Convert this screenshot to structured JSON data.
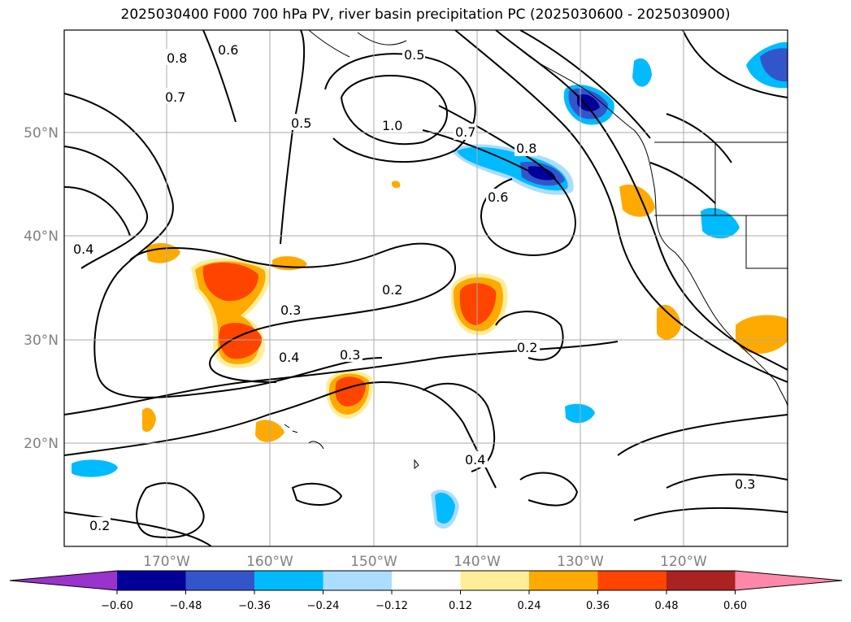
{
  "title": "2025030400 F000 700 hPa PV, river basin precipitation PC (2025030600 - 2025030900)",
  "map": {
    "lat_labels": [
      "50°N",
      "40°N",
      "30°N",
      "20°N"
    ],
    "lon_labels": [
      "170°W",
      "160°W",
      "150°W",
      "140°W",
      "130°W",
      "120°W"
    ],
    "grid": true
  },
  "contour_labels": [
    "0.8",
    "0.7",
    "0.6",
    "0.5",
    "0.4",
    "0.3",
    "0.2",
    "1.0",
    "0.2",
    "0.3",
    "0.4",
    "0.5",
    "0.6",
    "0.7",
    "0.8",
    "0.4",
    "0.3",
    "0.2"
  ],
  "precip_blobs": [
    {
      "sign": "positive",
      "peak": 0.48
    },
    {
      "sign": "positive",
      "peak": 0.48
    },
    {
      "sign": "positive",
      "peak": 0.48
    },
    {
      "sign": "positive",
      "peak": 0.48
    },
    {
      "sign": "negative",
      "peak": -0.48
    },
    {
      "sign": "negative",
      "peak": -0.48
    }
  ],
  "colorbar": {
    "colors": [
      "#9933cc",
      "#000099",
      "#3355cc",
      "#00bbff",
      "#aaddff",
      "#ffffff",
      "#ffee99",
      "#ffaa00",
      "#ff4400",
      "#aa2222",
      "#ff88aa"
    ],
    "tick_labels": [
      "−0.60",
      "−0.48",
      "−0.36",
      "−0.24",
      "−0.12",
      "0.12",
      "0.24",
      "0.36",
      "0.48",
      "0.60"
    ]
  }
}
